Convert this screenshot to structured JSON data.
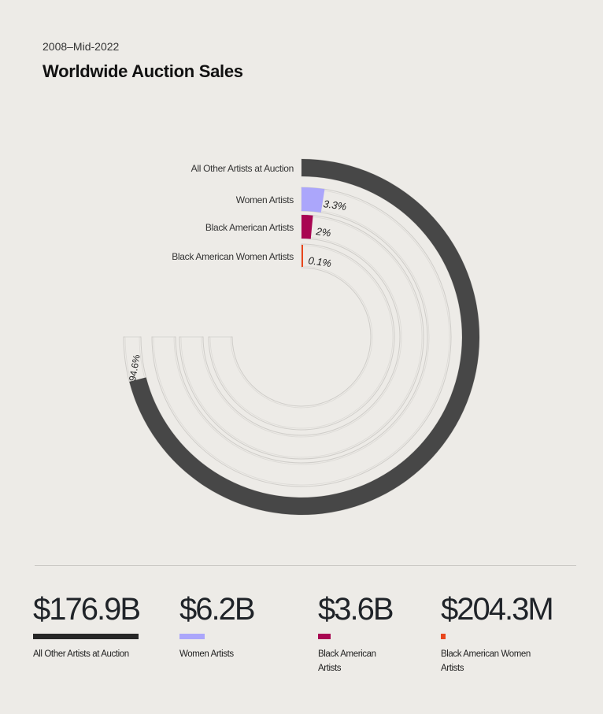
{
  "header": {
    "subtitle": "2008–Mid-2022",
    "title": "Worldwide Auction Sales"
  },
  "chart_data": {
    "type": "radial-bar",
    "title": "Worldwide Auction Sales",
    "subtitle": "2008–Mid-2022",
    "max_sweep_degrees": 270,
    "series": [
      {
        "name": "All Other Artists at Auction",
        "percent": 94.6,
        "percent_label": "94.6%",
        "total": "$176.9B",
        "color": "#474747"
      },
      {
        "name": "Women Artists",
        "percent": 3.3,
        "percent_label": "3.3%",
        "total": "$6.2B",
        "color": "#aba6fb"
      },
      {
        "name": "Black American Artists",
        "percent": 2,
        "percent_label": "2%",
        "total": "$3.6B",
        "color": "#a80652"
      },
      {
        "name": "Black American Women Artists",
        "percent": 0.1,
        "percent_label": "0.1%",
        "total": "$204.3M",
        "color": "#e8461c"
      }
    ]
  },
  "legend": [
    {
      "value": "$176.9B",
      "label": "All Other Artists at Auction"
    },
    {
      "value": "$6.2B",
      "label": "Women Artists"
    },
    {
      "value": "$3.6B",
      "label": "Black American Artists"
    },
    {
      "value": "$204.3M",
      "label": "Black American Women Artists"
    }
  ]
}
